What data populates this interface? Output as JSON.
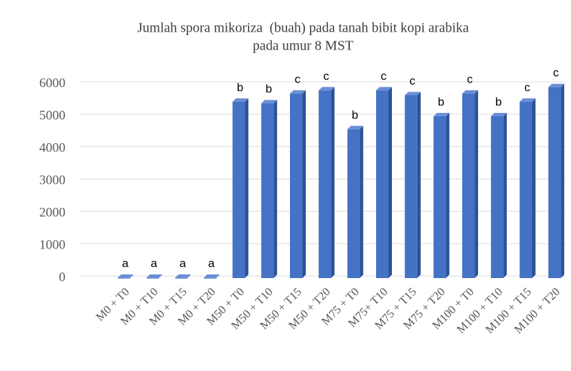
{
  "chart_data": {
    "type": "bar3d",
    "title": [
      "Jumlah spora mikoriza  (buah) pada tanah bibit kopi arabika",
      "pada umur 8 MST"
    ],
    "categories": [
      "M0 + T0",
      "M0 + T10",
      "M0 + T15",
      "M0 + T20",
      "M50 + T0",
      "M50 + T10",
      "M50 + T15",
      "M50 + T20",
      "M75 + T0",
      "M75+ T10",
      "M75 + T15",
      "M75 + T20",
      "M100 + T0",
      "M100 + T10",
      "M100 + T15",
      "M100 + T20"
    ],
    "values": [
      8,
      8,
      8,
      8,
      5450,
      5400,
      5700,
      5800,
      4600,
      5800,
      5650,
      5000,
      5700,
      5000,
      5450,
      5900
    ],
    "annotations": [
      "a",
      "a",
      "a",
      "a",
      "b",
      "b",
      "c",
      "c",
      "b",
      "c",
      "c",
      "b",
      "c",
      "b",
      "c",
      "c"
    ],
    "color": "#4472c4",
    "ylim": [
      0,
      6000
    ],
    "yticks": [
      0,
      1000,
      2000,
      3000,
      4000,
      5000,
      6000
    ],
    "grid": true
  }
}
